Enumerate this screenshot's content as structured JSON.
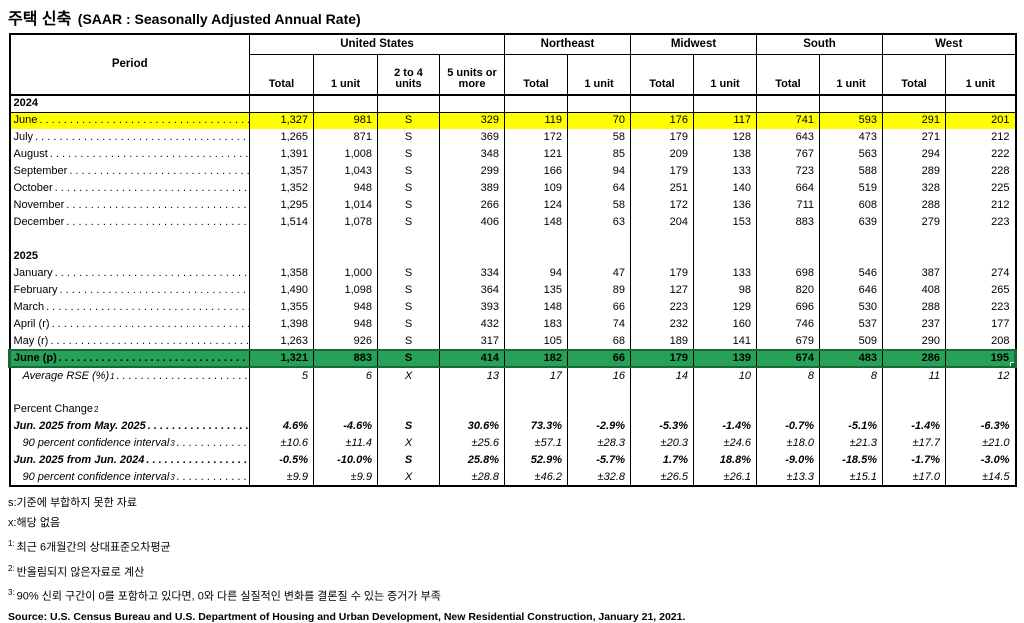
{
  "title": {
    "kr": "주택 신축",
    "en": "(SAAR : Seasonally Adjusted Annual Rate)"
  },
  "table": {
    "period_label": "Period",
    "groups": [
      {
        "label": "United States",
        "span": 4
      },
      {
        "label": "Northeast",
        "span": 2
      },
      {
        "label": "Midwest",
        "span": 2
      },
      {
        "label": "South",
        "span": 2
      },
      {
        "label": "West",
        "span": 2
      }
    ],
    "sub_columns": [
      "Total",
      "1 unit",
      "2 to 4 units",
      "5 units or more",
      "Total",
      "1 unit",
      "Total",
      "1 unit",
      "Total",
      "1 unit",
      "Total",
      "1 unit"
    ],
    "rows": [
      {
        "type": "year",
        "label": "2024",
        "rule_below": true
      },
      {
        "type": "month",
        "label": "June",
        "highlight": "yellow",
        "values": [
          "1,327",
          "981",
          "S",
          "329",
          "119",
          "70",
          "176",
          "117",
          "741",
          "593",
          "291",
          "201"
        ]
      },
      {
        "type": "month",
        "label": "July",
        "values": [
          "1,265",
          "871",
          "S",
          "369",
          "172",
          "58",
          "179",
          "128",
          "643",
          "473",
          "271",
          "212"
        ]
      },
      {
        "type": "month",
        "label": "August",
        "values": [
          "1,391",
          "1,008",
          "S",
          "348",
          "121",
          "85",
          "209",
          "138",
          "767",
          "563",
          "294",
          "222"
        ]
      },
      {
        "type": "month",
        "label": "September",
        "values": [
          "1,357",
          "1,043",
          "S",
          "299",
          "166",
          "94",
          "179",
          "133",
          "723",
          "588",
          "289",
          "228"
        ]
      },
      {
        "type": "month",
        "label": "October",
        "values": [
          "1,352",
          "948",
          "S",
          "389",
          "109",
          "64",
          "251",
          "140",
          "664",
          "519",
          "328",
          "225"
        ]
      },
      {
        "type": "month",
        "label": "November",
        "values": [
          "1,295",
          "1,014",
          "S",
          "266",
          "124",
          "58",
          "172",
          "136",
          "711",
          "608",
          "288",
          "212"
        ]
      },
      {
        "type": "month",
        "label": "December",
        "values": [
          "1,514",
          "1,078",
          "S",
          "406",
          "148",
          "63",
          "204",
          "153",
          "883",
          "639",
          "279",
          "223"
        ]
      },
      {
        "type": "blank"
      },
      {
        "type": "year",
        "label": "2025"
      },
      {
        "type": "month",
        "label": "January",
        "values": [
          "1,358",
          "1,000",
          "S",
          "334",
          "94",
          "47",
          "179",
          "133",
          "698",
          "546",
          "387",
          "274"
        ]
      },
      {
        "type": "month",
        "label": "February",
        "values": [
          "1,490",
          "1,098",
          "S",
          "364",
          "135",
          "89",
          "127",
          "98",
          "820",
          "646",
          "408",
          "265"
        ]
      },
      {
        "type": "month",
        "label": "March",
        "values": [
          "1,355",
          "948",
          "S",
          "393",
          "148",
          "66",
          "223",
          "129",
          "696",
          "530",
          "288",
          "223"
        ]
      },
      {
        "type": "month",
        "label": "April (r)",
        "values": [
          "1,398",
          "948",
          "S",
          "432",
          "183",
          "74",
          "232",
          "160",
          "746",
          "537",
          "237",
          "177"
        ]
      },
      {
        "type": "month",
        "label": "May (r)",
        "values": [
          "1,263",
          "926",
          "S",
          "317",
          "105",
          "68",
          "189",
          "141",
          "679",
          "509",
          "290",
          "208"
        ]
      },
      {
        "type": "month",
        "label": "June (p)",
        "highlight": "green",
        "values": [
          "1,321",
          "883",
          "S",
          "414",
          "182",
          "66",
          "179",
          "139",
          "674",
          "483",
          "286",
          "195"
        ]
      },
      {
        "type": "rse",
        "label": "Average RSE (%)",
        "sup": "1",
        "values": [
          "5",
          "6",
          "X",
          "13",
          "17",
          "16",
          "14",
          "10",
          "8",
          "8",
          "11",
          "12"
        ]
      },
      {
        "type": "blank"
      },
      {
        "type": "section",
        "label": "Percent Change",
        "sup": "2"
      },
      {
        "type": "pct",
        "label": "Jun. 2025 from May. 2025",
        "values": [
          "4.6%",
          "-4.6%",
          "S",
          "30.6%",
          "73.3%",
          "-2.9%",
          "-5.3%",
          "-1.4%",
          "-0.7%",
          "-5.1%",
          "-1.4%",
          "-6.3%"
        ]
      },
      {
        "type": "ci",
        "label": "90 percent confidence interval",
        "sup": "3",
        "values": [
          "±10.6",
          "±11.4",
          "X",
          "±25.6",
          "±57.1",
          "±28.3",
          "±20.3",
          "±24.6",
          "±18.0",
          "±21.3",
          "±17.7",
          "±21.0"
        ]
      },
      {
        "type": "pct",
        "label": "Jun. 2025 from Jun. 2024",
        "values": [
          "-0.5%",
          "-10.0%",
          "S",
          "25.8%",
          "52.9%",
          "-5.7%",
          "1.7%",
          "18.8%",
          "-9.0%",
          "-18.5%",
          "-1.7%",
          "-3.0%"
        ]
      },
      {
        "type": "ci",
        "label": "90 percent confidence interval",
        "sup": "3",
        "values": [
          "±9.9",
          "±9.9",
          "X",
          "±28.8",
          "±46.2",
          "±32.8",
          "±26.5",
          "±26.1",
          "±13.3",
          "±15.1",
          "±17.0",
          "±14.5"
        ]
      }
    ]
  },
  "footnotes": [
    {
      "marker": "",
      "text": "s:기준에 부합하지 못한 자료"
    },
    {
      "marker": "",
      "text": "x:해당 없음"
    },
    {
      "marker": "1:",
      "text": "최근 6개월간의 상대표준오차평균"
    },
    {
      "marker": "2:",
      "text": "반올림되지 않은자료로 계산"
    },
    {
      "marker": "3:",
      "text": "90% 신뢰 구간이 0를 포함하고 있다면, 0와 다른 실질적인 변화를 결론질 수 있는 증거가 부족"
    }
  ],
  "source": "Source: U.S. Census Bureau and U.S. Department of Housing and Urban Development, New Residential Construction, January 21, 2021.",
  "colors": {
    "highlight_yellow": "#FFFF00",
    "highlight_green": "#27A157",
    "selection_border": "#156B38"
  }
}
